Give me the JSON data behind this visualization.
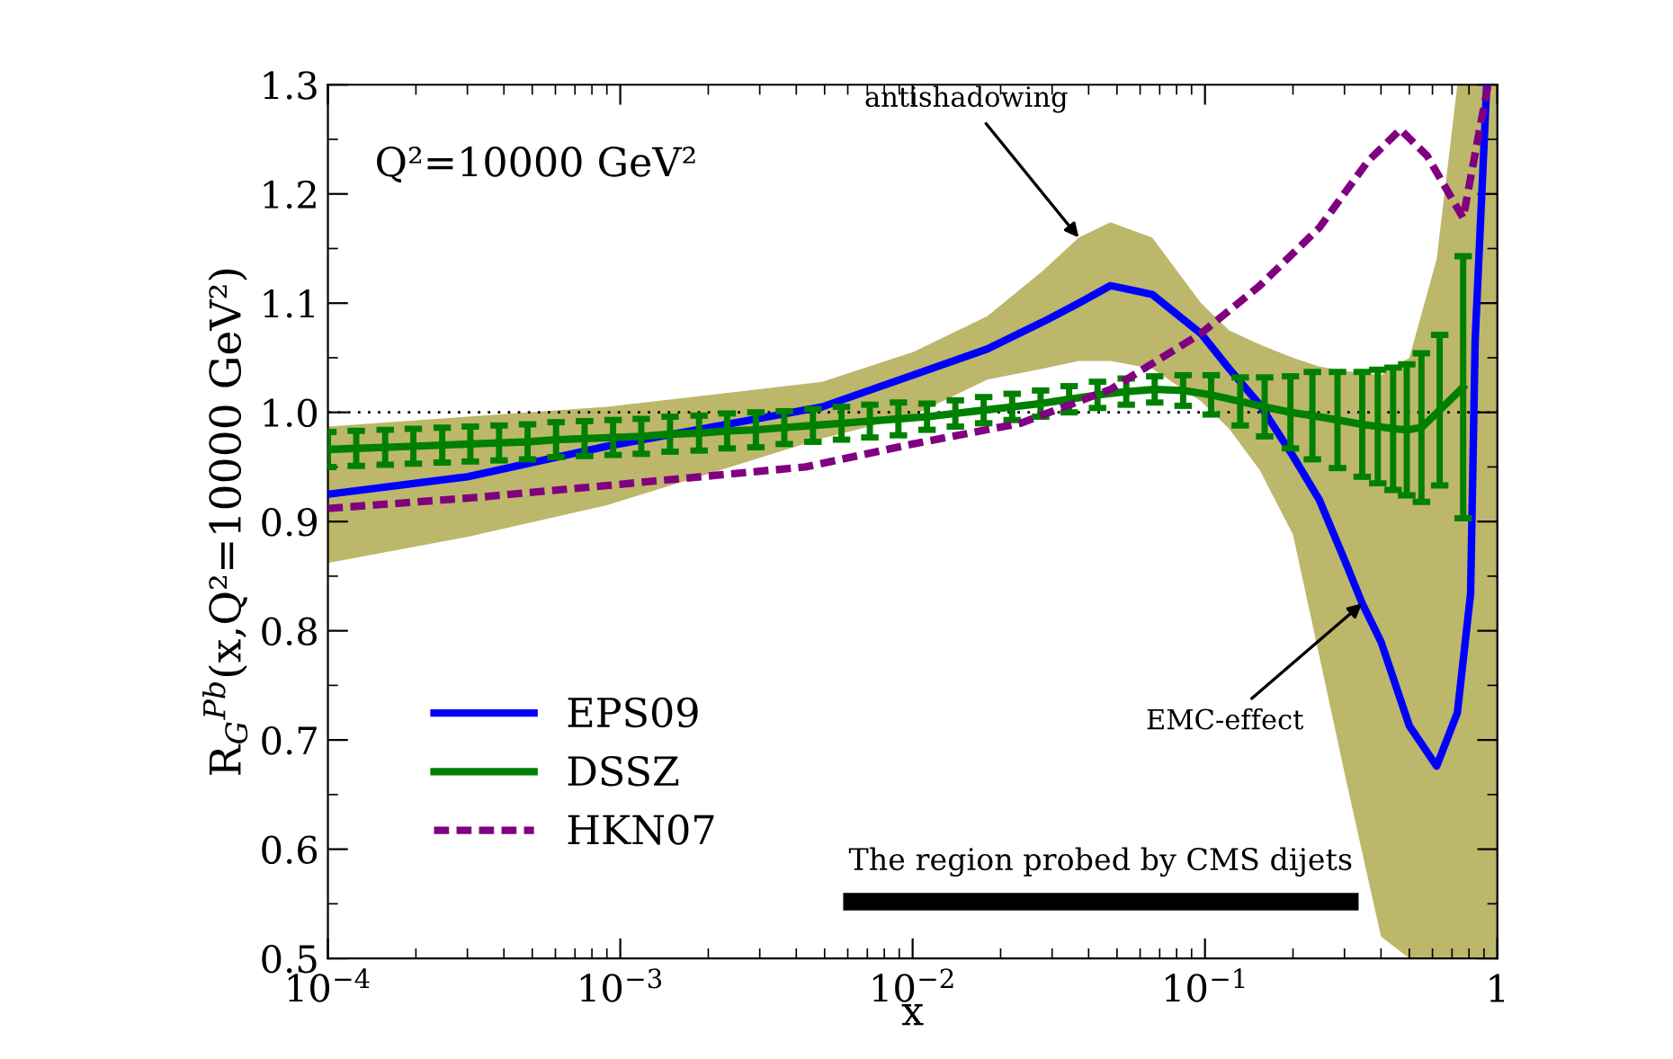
{
  "chart_data": {
    "type": "line",
    "xlabel": "x",
    "ylabel": "R$_{G}$$^{Pb}$(x,Q²=10000 GeV²)",
    "log": "x",
    "xlim": [
      0.0001,
      1
    ],
    "ylim": [
      0.5,
      1.3
    ],
    "xticks": [
      {
        "value": 0.0001,
        "label": "10$^{−4}$"
      },
      {
        "value": 0.001,
        "label": "10$^{−3}$"
      },
      {
        "value": 0.01,
        "label": "10$^{−2}$"
      },
      {
        "value": 0.1,
        "label": "10$^{−1}$"
      },
      {
        "value": 1,
        "label": "1"
      }
    ],
    "yticks": [
      {
        "value": 0.5,
        "label": "0.5"
      },
      {
        "value": 0.6,
        "label": "0.6"
      },
      {
        "value": 0.7,
        "label": "0.7"
      },
      {
        "value": 0.8,
        "label": "0.8"
      },
      {
        "value": 0.9,
        "label": "0.9"
      },
      {
        "value": 1.0,
        "label": "1.0"
      },
      {
        "value": 1.1,
        "label": "1.1"
      },
      {
        "value": 1.2,
        "label": "1.2"
      },
      {
        "value": 1.3,
        "label": "1.3"
      }
    ],
    "grid": false,
    "legend": "bottom left",
    "ref_lines": [
      {
        "axis": "y",
        "value": 1.0,
        "color": "#000000",
        "line_style": "dotted"
      }
    ],
    "series": [
      {
        "name": "EPS09",
        "color": "#0000ff",
        "line_style": "solid",
        "x": [
          0.0001,
          0.0003,
          0.0009,
          0.0049,
          0.01,
          0.018,
          0.028,
          0.037,
          0.0475,
          0.066,
          0.097,
          0.121,
          0.154,
          0.2,
          0.246,
          0.3,
          0.345,
          0.4,
          0.5,
          0.62,
          0.73,
          0.81,
          0.84,
          0.92,
          1
        ],
        "values": [
          0.925,
          0.941,
          0.969,
          1.005,
          1.034,
          1.058,
          1.083,
          1.1,
          1.116,
          1.108,
          1.072,
          1.04,
          1.007,
          0.96,
          0.92,
          0.865,
          0.825,
          0.79,
          0.713,
          0.676,
          0.725,
          0.834,
          1.067,
          1.3,
          null
        ],
        "upper": [
          0.987,
          0.996,
          1.005,
          1.028,
          1.055,
          1.088,
          1.13,
          1.16,
          1.174,
          1.16,
          1.1,
          1.075,
          1.062,
          1.05,
          1.042,
          1.038,
          1.036,
          1.034,
          1.05,
          1.14,
          1.3,
          1.3,
          1.3,
          1.3,
          1.3
        ],
        "lower": [
          0.862,
          0.886,
          0.915,
          0.976,
          0.997,
          1.03,
          1.04,
          1.047,
          1.047,
          1.04,
          1.01,
          0.985,
          0.947,
          0.888,
          0.777,
          0.67,
          0.597,
          0.52,
          0.5,
          0.5,
          0.5,
          0.5,
          0.5,
          0.5,
          0.5
        ]
      },
      {
        "name": "DSSZ",
        "color": "#008000",
        "line_style": "solid",
        "x": [
          0.0001,
          0.000125,
          0.000157,
          0.000196,
          0.000246,
          0.000307,
          0.000385,
          0.000482,
          0.000603,
          0.000755,
          0.000945,
          0.00118,
          0.00148,
          0.00186,
          0.00232,
          0.00291,
          0.00364,
          0.00456,
          0.00571,
          0.00714,
          0.00894,
          0.0112,
          0.014,
          0.0175,
          0.0219,
          0.0274,
          0.0343,
          0.0429,
          0.0538,
          0.0673,
          0.0842,
          0.105,
          0.132,
          0.16,
          0.196,
          0.233,
          0.284,
          0.345,
          0.39,
          0.44,
          0.49,
          0.55,
          0.635,
          0.764
        ],
        "values": [
          0.966,
          0.967,
          0.968,
          0.969,
          0.97,
          0.971,
          0.972,
          0.973,
          0.975,
          0.976,
          0.977,
          0.978,
          0.98,
          0.981,
          0.983,
          0.984,
          0.986,
          0.988,
          0.99,
          0.992,
          0.994,
          0.996,
          0.999,
          1.002,
          1.005,
          1.008,
          1.012,
          1.016,
          1.019,
          1.021,
          1.02,
          1.016,
          1.01,
          1.005,
          1.0,
          0.997,
          0.993,
          0.989,
          0.987,
          0.985,
          0.984,
          0.986,
          1.002,
          1.023
        ],
        "errors": [
          0.016,
          0.016,
          0.016,
          0.016,
          0.016,
          0.016,
          0.016,
          0.016,
          0.016,
          0.016,
          0.016,
          0.016,
          0.016,
          0.016,
          0.016,
          0.016,
          0.015,
          0.015,
          0.015,
          0.015,
          0.015,
          0.012,
          0.012,
          0.012,
          0.012,
          0.012,
          0.012,
          0.012,
          0.012,
          0.012,
          0.014,
          0.018,
          0.022,
          0.027,
          0.033,
          0.04,
          0.044,
          0.048,
          0.052,
          0.056,
          0.06,
          0.068,
          0.069,
          0.12
        ]
      },
      {
        "name": "HKN07",
        "color": "#800080",
        "line_style": "dashed",
        "x": [
          0.0001,
          0.00032,
          0.0009,
          0.0043,
          0.01,
          0.0234,
          0.0475,
          0.0966,
          0.154,
          0.246,
          0.361,
          0.466,
          0.575,
          0.764,
          0.867,
          0.93
        ],
        "values": [
          0.912,
          0.922,
          0.933,
          0.95,
          0.971,
          0.99,
          1.021,
          1.072,
          1.116,
          1.169,
          1.23,
          1.259,
          1.235,
          1.178,
          1.257,
          1.3
        ]
      },
      {
        "color": "#000000",
        "line_style": "solid",
        "x": [
          0.0062,
          0.313
        ],
        "values": [
          0.552,
          0.552
        ]
      }
    ],
    "annotations": [
      "Q²=10000 GeV²",
      {
        "text": "antishadowing",
        "x": 0.037,
        "y": 1.16
      },
      {
        "text": "EMC-effect",
        "x": 0.345,
        "y": 0.825
      },
      {
        "text": "The region probed by CMS dijets",
        "x": 0.044,
        "y": 0.552
      }
    ]
  }
}
